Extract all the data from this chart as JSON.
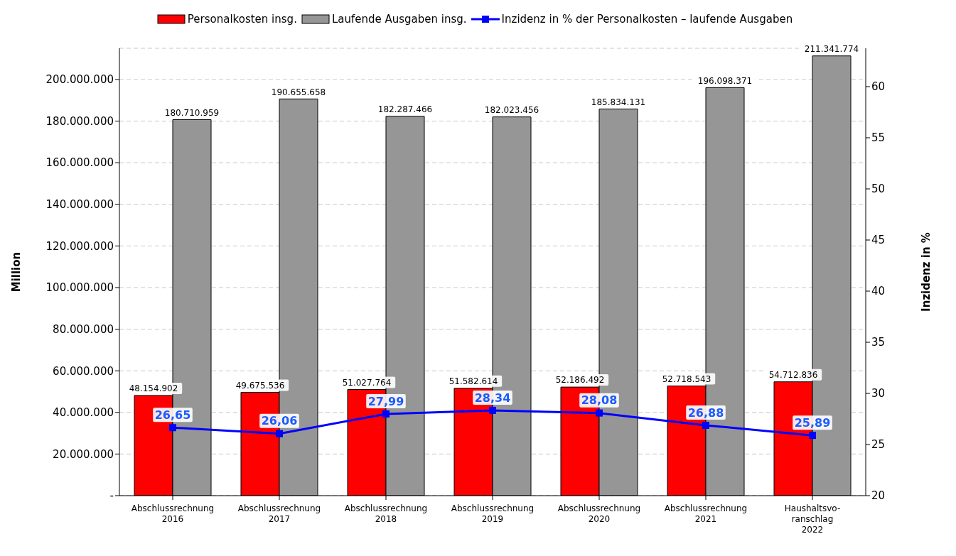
{
  "chart_data": {
    "type": "bar",
    "ylabel": "Million",
    "y2label": "Inzidenz in %",
    "categories": [
      "Abschlussrechnung\n2016",
      "Abschlussrechnung\n2017",
      "Abschlussrechnung\n2018",
      "Abschlussrechnung\n2019",
      "Abschlussrechnung\n2020",
      "Abschlussrechnung\n2021",
      "Haushaltsvo-\nranschlag\n2022"
    ],
    "series": [
      {
        "name": "Personalkosten insg.",
        "color": "#ff0000",
        "values": [
          48154902,
          49675536,
          51027764,
          51582614,
          52186492,
          52718543,
          54712836
        ],
        "value_labels": [
          "48.154.902",
          "49.675.536",
          "51.027.764",
          "51.582.614",
          "52.186.492",
          "52.718.543",
          "54.712.836"
        ]
      },
      {
        "name": "Laufende Ausgaben insg.",
        "color": "#969696",
        "values": [
          180710959,
          190655658,
          182287466,
          182023456,
          185834131,
          196098371,
          211341774
        ],
        "value_labels": [
          "180.710.959",
          "190.655.658",
          "182.287.466",
          "182.023.456",
          "185.834.131",
          "196.098.371",
          "211.341.774"
        ]
      },
      {
        "name": "Inzidenz in % der Personalkosten – laufende Ausgaben",
        "type": "line",
        "axis": "y2",
        "color": "#0000ff",
        "values": [
          26.65,
          26.06,
          27.99,
          28.34,
          28.08,
          26.88,
          25.89
        ],
        "value_labels": [
          "26,65",
          "26,06",
          "27,99",
          "28,34",
          "28,08",
          "26,88",
          "25,89"
        ]
      }
    ],
    "ylim": [
      0,
      215000000
    ],
    "yticks": [
      {
        "value": 0,
        "label": "-"
      },
      {
        "value": 20000000,
        "label": "20.000.000"
      },
      {
        "value": 40000000,
        "label": "40.000.000"
      },
      {
        "value": 60000000,
        "label": "60.000.000"
      },
      {
        "value": 80000000,
        "label": "80.000.000"
      },
      {
        "value": 100000000,
        "label": "100.000.000"
      },
      {
        "value": 120000000,
        "label": "120.000.000"
      },
      {
        "value": 140000000,
        "label": "140.000.000"
      },
      {
        "value": 160000000,
        "label": "160.000.000"
      },
      {
        "value": 180000000,
        "label": "180.000.000"
      },
      {
        "value": 200000000,
        "label": "200.000.000"
      }
    ],
    "y2lim": [
      20,
      63.75
    ],
    "y2ticks": [
      20,
      25,
      30,
      35,
      40,
      45,
      50,
      55,
      60
    ],
    "grid": "y",
    "legend": "top",
    "marker": "square",
    "line_style": "solid"
  }
}
